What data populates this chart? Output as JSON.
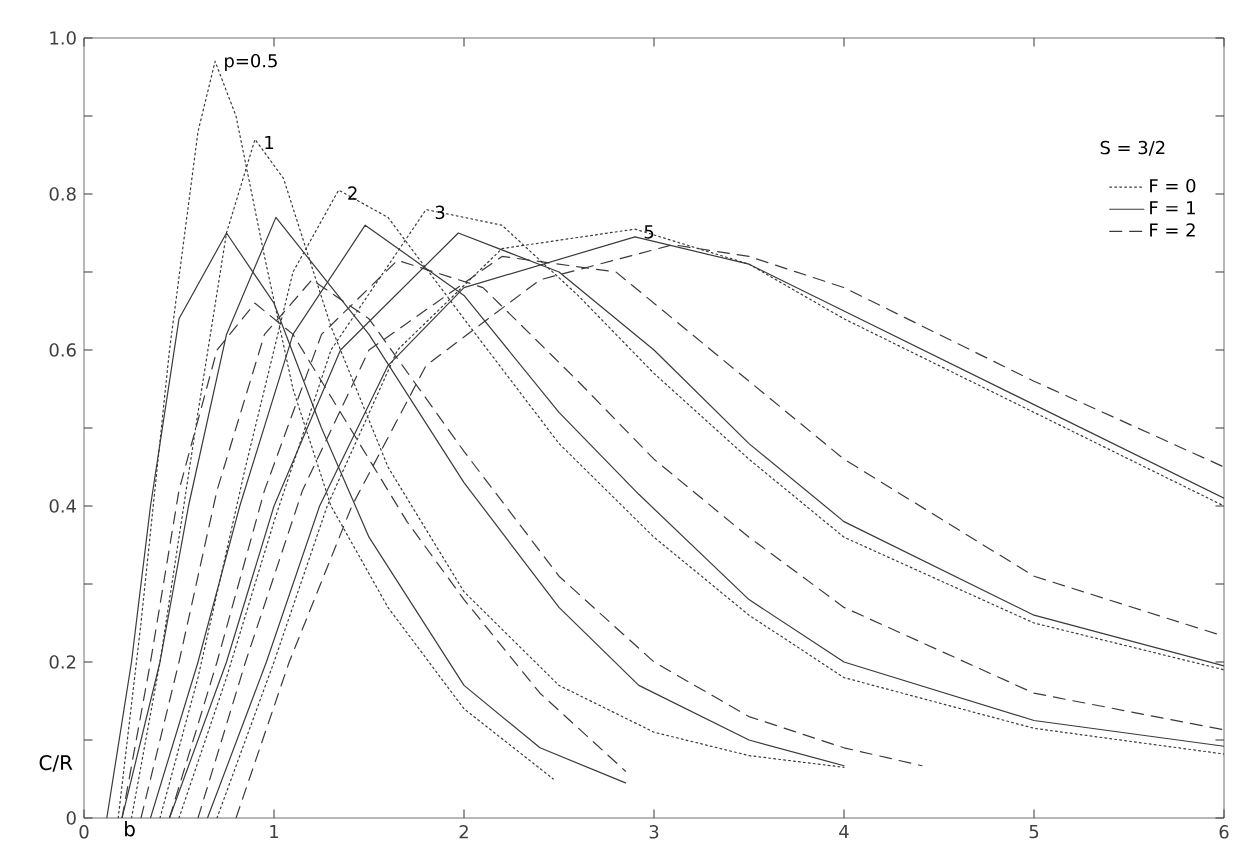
{
  "chart_data": {
    "type": "line",
    "xlabel": "b",
    "ylabel": "C/R",
    "xlim": [
      0,
      6
    ],
    "ylim": [
      0,
      1.0
    ],
    "xticks": [
      0,
      1,
      2,
      3,
      4,
      5,
      6
    ],
    "yticks": [
      0,
      {
        "value": 0.1,
        "label": null
      },
      0.2,
      {
        "value": 0.3,
        "label": null
      },
      0.4,
      {
        "value": 0.5,
        "label": null
      },
      0.6,
      {
        "value": 0.7,
        "label": null
      },
      0.8,
      {
        "value": 0.9,
        "label": null
      },
      {
        "value": 1.0,
        "label": "1.0"
      }
    ],
    "legend": "top right",
    "legend_title": "S = 3/2",
    "marker": "none",
    "grid": false,
    "series": [
      {
        "name": "F = 0",
        "color": "#3a3a3a",
        "line_style": "dotted",
        "x": [
          0.18,
          0.3,
          0.45,
          0.6,
          0.69,
          0.8,
          0.95,
          1.1,
          1.3,
          1.6,
          2.0,
          2.47
        ],
        "values": [
          0,
          0.25,
          0.6,
          0.88,
          0.97,
          0.9,
          0.72,
          0.55,
          0.4,
          0.27,
          0.14,
          0.05
        ]
      },
      {
        "name": "F = 1",
        "color": "#3a3a3a",
        "line_style": "solid",
        "x": [
          0.12,
          0.25,
          0.35,
          0.5,
          0.75,
          1.0,
          1.25,
          1.5,
          2.0,
          2.4,
          2.85
        ],
        "values": [
          0,
          0.2,
          0.4,
          0.64,
          0.75,
          0.66,
          0.5,
          0.36,
          0.17,
          0.09,
          0.045
        ]
      },
      {
        "name": "F = 2",
        "color": "#3a3a3a",
        "line_style": "dashed",
        "x": [
          0.2,
          0.35,
          0.5,
          0.7,
          0.9,
          1.1,
          1.4,
          1.7,
          2.0,
          2.4,
          2.85
        ],
        "values": [
          0,
          0.2,
          0.42,
          0.6,
          0.66,
          0.62,
          0.5,
          0.38,
          0.28,
          0.16,
          0.06
        ]
      },
      {
        "color": "#3a3a3a",
        "line_style": "dotted",
        "x": [
          0.25,
          0.4,
          0.6,
          0.75,
          0.9,
          1.05,
          1.3,
          1.6,
          2.0,
          2.5,
          3.0,
          3.5,
          4.0
        ],
        "values": [
          0,
          0.2,
          0.52,
          0.75,
          0.87,
          0.82,
          0.63,
          0.45,
          0.29,
          0.17,
          0.11,
          0.08,
          0.065
        ]
      },
      {
        "color": "#3a3a3a",
        "line_style": "dotted",
        "x": [
          0.4,
          0.6,
          0.85,
          1.1,
          1.34,
          1.6,
          2.0,
          2.5,
          3.0,
          3.5,
          4.0,
          5.0,
          6.0
        ],
        "values": [
          0,
          0.18,
          0.45,
          0.7,
          0.805,
          0.77,
          0.64,
          0.48,
          0.36,
          0.26,
          0.18,
          0.115,
          0.082
        ]
      },
      {
        "color": "#3a3a3a",
        "line_style": "dotted",
        "x": [
          0.5,
          0.75,
          1.0,
          1.3,
          1.8,
          2.2,
          2.6,
          3.0,
          3.5,
          4.0,
          5.0,
          6.0
        ],
        "values": [
          0,
          0.18,
          0.38,
          0.6,
          0.78,
          0.76,
          0.67,
          0.57,
          0.46,
          0.36,
          0.25,
          0.19
        ]
      },
      {
        "color": "#3a3a3a",
        "line_style": "dotted",
        "x": [
          0.7,
          1.0,
          1.28,
          1.65,
          2.2,
          2.9,
          3.5,
          4.0,
          5.0,
          6.0
        ],
        "values": [
          0,
          0.2,
          0.4,
          0.6,
          0.73,
          0.755,
          0.71,
          0.64,
          0.52,
          0.4
        ]
      },
      {
        "color": "#3a3a3a",
        "line_style": "solid",
        "x": [
          0.2,
          0.4,
          0.55,
          0.75,
          1.01,
          1.5,
          2.0,
          2.5,
          2.92,
          3.5,
          4.0
        ],
        "values": [
          0,
          0.2,
          0.4,
          0.62,
          0.77,
          0.62,
          0.43,
          0.27,
          0.17,
          0.1,
          0.067
        ]
      },
      {
        "color": "#3a3a3a",
        "line_style": "solid",
        "x": [
          0.35,
          0.6,
          0.82,
          1.1,
          1.48,
          2.0,
          2.5,
          2.92,
          3.5,
          4.0,
          5.0,
          6.0
        ],
        "values": [
          0,
          0.2,
          0.4,
          0.62,
          0.76,
          0.67,
          0.52,
          0.415,
          0.28,
          0.2,
          0.125,
          0.092
        ]
      },
      {
        "color": "#3a3a3a",
        "line_style": "solid",
        "x": [
          0.45,
          0.75,
          1.0,
          1.35,
          1.97,
          2.5,
          3.0,
          3.5,
          4.0,
          5.0,
          6.0
        ],
        "values": [
          0,
          0.2,
          0.4,
          0.6,
          0.75,
          0.7,
          0.6,
          0.48,
          0.38,
          0.26,
          0.195
        ]
      },
      {
        "color": "#3a3a3a",
        "line_style": "solid",
        "x": [
          0.65,
          0.96,
          1.24,
          1.6,
          2.0,
          2.9,
          3.5,
          4.0,
          5.0,
          6.0
        ],
        "values": [
          0,
          0.2,
          0.4,
          0.58,
          0.68,
          0.745,
          0.71,
          0.65,
          0.53,
          0.41
        ]
      },
      {
        "color": "#3a3a3a",
        "line_style": "dashed",
        "x": [
          0.3,
          0.5,
          0.7,
          0.95,
          1.2,
          1.5,
          2.0,
          2.5,
          3.0,
          3.5,
          4.0,
          4.41
        ],
        "values": [
          0,
          0.2,
          0.42,
          0.62,
          0.69,
          0.64,
          0.47,
          0.31,
          0.2,
          0.13,
          0.09,
          0.067
        ]
      },
      {
        "color": "#3a3a3a",
        "line_style": "dashed",
        "x": [
          0.45,
          0.7,
          0.95,
          1.25,
          1.65,
          2.1,
          2.6,
          3.0,
          3.5,
          4.0,
          5.0,
          6.0
        ],
        "values": [
          0,
          0.2,
          0.42,
          0.62,
          0.715,
          0.68,
          0.56,
          0.46,
          0.36,
          0.27,
          0.16,
          0.113
        ]
      },
      {
        "color": "#3a3a3a",
        "line_style": "dashed",
        "x": [
          0.6,
          0.85,
          1.15,
          1.5,
          2.2,
          2.8,
          3.5,
          4.0,
          5.0,
          6.0
        ],
        "values": [
          0,
          0.2,
          0.42,
          0.6,
          0.72,
          0.7,
          0.56,
          0.46,
          0.31,
          0.233
        ]
      },
      {
        "color": "#3a3a3a",
        "line_style": "dashed",
        "x": [
          0.8,
          1.08,
          1.41,
          1.8,
          2.4,
          3.1,
          3.5,
          4.0,
          5.0,
          6.0
        ],
        "values": [
          0,
          0.2,
          0.4,
          0.58,
          0.69,
          0.735,
          0.72,
          0.68,
          0.56,
          0.45
        ]
      }
    ],
    "annotations": [
      {
        "text": "p=0.5",
        "x": 0.69,
        "y": 0.97
      },
      {
        "text": "1",
        "x": 0.9,
        "y": 0.87
      },
      {
        "text": "2",
        "x": 1.34,
        "y": 0.805
      },
      {
        "text": "3",
        "x": 1.8,
        "y": 0.78
      },
      {
        "text": "5",
        "x": 2.9,
        "y": 0.755
      }
    ]
  }
}
